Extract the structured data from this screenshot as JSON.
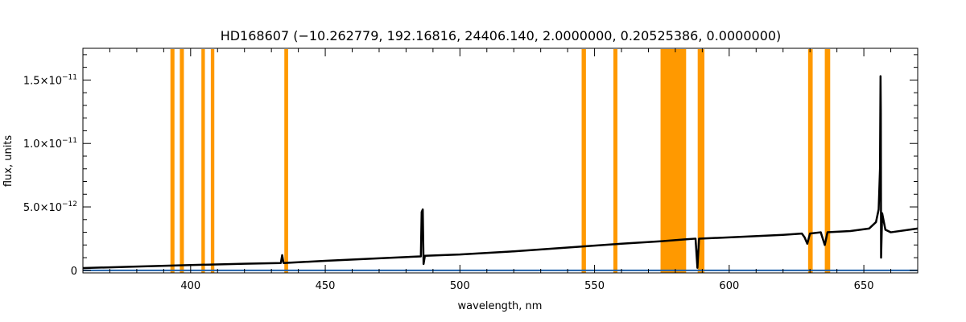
{
  "chart_data": {
    "type": "line",
    "title": "HD168607    (−10.262779, 192.16816, 24406.140, 2.0000000, 0.20525386, 0.0000000)",
    "xlabel": "wavelength, nm",
    "ylabel": "flux, units",
    "xlim": [
      360,
      670
    ],
    "ylim": [
      -2e-13,
      1.75e-11
    ],
    "x_ticks": [
      {
        "value": 400,
        "label": "400"
      },
      {
        "value": 450,
        "label": "450"
      },
      {
        "value": 500,
        "label": "500"
      },
      {
        "value": 550,
        "label": "550"
      },
      {
        "value": 600,
        "label": "600"
      },
      {
        "value": 650,
        "label": "650"
      }
    ],
    "y_ticks": [
      {
        "value": 0,
        "mantissa": "0",
        "exponent": ""
      },
      {
        "value": 5e-12,
        "mantissa": "5.0×10",
        "exponent": "−12"
      },
      {
        "value": 1e-11,
        "mantissa": "1.0×10",
        "exponent": "−11"
      },
      {
        "value": 1.5e-11,
        "mantissa": "1.5×10",
        "exponent": "−11"
      }
    ],
    "grid": false,
    "masked_bands": {
      "color": "#ff9900",
      "ranges": [
        [
          392.5,
          394.0
        ],
        [
          396.0,
          397.5
        ],
        [
          404.0,
          405.3
        ],
        [
          407.5,
          408.8
        ],
        [
          434.8,
          436.2
        ],
        [
          545.2,
          546.8
        ],
        [
          557.0,
          558.5
        ],
        [
          574.5,
          584.0
        ],
        [
          588.3,
          590.8
        ],
        [
          629.3,
          631.0
        ],
        [
          635.5,
          637.5
        ]
      ]
    },
    "series": [
      {
        "color": "#000000",
        "points": [
          [
            360,
            1.8e-13
          ],
          [
            380,
            3e-13
          ],
          [
            400,
            4.2e-13
          ],
          [
            420,
            5.2e-13
          ],
          [
            433.5,
            5.8e-13
          ],
          [
            434,
            1.2e-12
          ],
          [
            434.5,
            5.8e-13
          ],
          [
            450,
            7.5e-13
          ],
          [
            470,
            9.5e-13
          ],
          [
            485.5,
            1.1e-12
          ],
          [
            485.8,
            4.6e-12
          ],
          [
            486.2,
            4.8e-12
          ],
          [
            486.5,
            5e-13
          ],
          [
            487,
            1.15e-12
          ],
          [
            500,
            1.25e-12
          ],
          [
            520,
            1.5e-12
          ],
          [
            540,
            1.8e-12
          ],
          [
            560,
            2.1e-12
          ],
          [
            575,
            2.3e-12
          ],
          [
            584,
            2.45e-12
          ],
          [
            587.5,
            2.5e-12
          ],
          [
            588.2,
            2e-13
          ],
          [
            588.8,
            2.5e-12
          ],
          [
            600,
            2.6e-12
          ],
          [
            620,
            2.8e-12
          ],
          [
            627,
            2.9e-12
          ],
          [
            628,
            2.6e-12
          ],
          [
            629,
            2.1e-12
          ],
          [
            630,
            2.9e-12
          ],
          [
            634,
            3e-12
          ],
          [
            635.5,
            2e-12
          ],
          [
            636.5,
            3e-12
          ],
          [
            645,
            3.1e-12
          ],
          [
            652,
            3.3e-12
          ],
          [
            654.5,
            3.8e-12
          ],
          [
            655.5,
            4.8e-12
          ],
          [
            656.0,
            8e-12
          ],
          [
            656.2,
            1.53e-11
          ],
          [
            656.3,
            1.25e-11
          ],
          [
            656.4,
            1e-12
          ],
          [
            656.8,
            4.5e-12
          ],
          [
            658,
            3.2e-12
          ],
          [
            660,
            3e-12
          ],
          [
            670,
            3.3e-12
          ]
        ]
      },
      {
        "color": "#1f5fa8",
        "points": [
          [
            360,
            0
          ],
          [
            670,
            0
          ]
        ]
      }
    ]
  }
}
